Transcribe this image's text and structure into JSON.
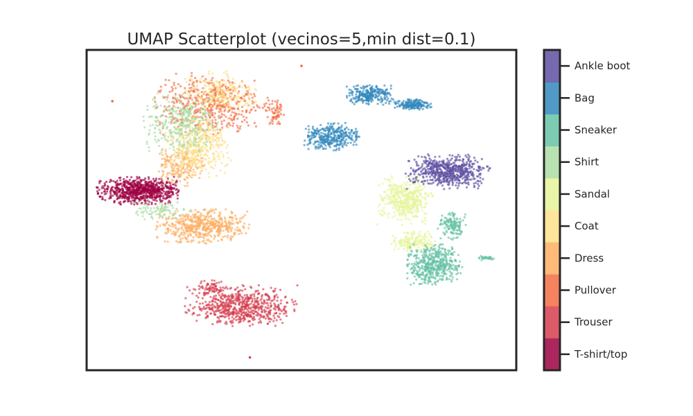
{
  "chart_data": {
    "type": "scatter",
    "title": "UMAP Scatterplot (vecinos=5,min dist=0.1)",
    "xlabel": "",
    "ylabel": "",
    "x_ticks_shown": false,
    "y_ticks_shown": false,
    "grid": false,
    "colorbar": {
      "type": "discrete",
      "cmap": "Spectral",
      "placement": "right",
      "labels": [
        "T-shirt/top",
        "Trouser",
        "Pullover",
        "Dress",
        "Coat",
        "Sandal",
        "Shirt",
        "Sneaker",
        "Bag",
        "Ankle boot"
      ],
      "colors": [
        "#9e0142",
        "#d53e4f",
        "#f46d43",
        "#fdae61",
        "#fee08b",
        "#e6f598",
        "#abdda4",
        "#66c2a5",
        "#3288bd",
        "#5e4fa2"
      ]
    },
    "series": [
      {
        "name": "T-shirt/top",
        "color": "#9e0142",
        "clusters": [
          {
            "cx": 0.12,
            "cy": 0.44,
            "rx": 0.09,
            "ry": 0.04,
            "n": 750
          }
        ]
      },
      {
        "name": "Trouser",
        "color": "#d53e4f",
        "clusters": [
          {
            "cx": 0.36,
            "cy": 0.8,
            "rx": 0.12,
            "ry": 0.06,
            "n": 650
          },
          {
            "cx": 0.29,
            "cy": 0.74,
            "rx": 0.03,
            "ry": 0.02,
            "n": 60
          }
        ]
      },
      {
        "name": "Pullover",
        "color": "#f46d43",
        "clusters": [
          {
            "cx": 0.29,
            "cy": 0.17,
            "rx": 0.12,
            "ry": 0.09,
            "n": 520
          },
          {
            "cx": 0.44,
            "cy": 0.2,
            "rx": 0.02,
            "ry": 0.04,
            "n": 60
          }
        ]
      },
      {
        "name": "Dress",
        "color": "#fdae61",
        "clusters": [
          {
            "cx": 0.27,
            "cy": 0.55,
            "rx": 0.1,
            "ry": 0.05,
            "n": 520
          },
          {
            "cx": 0.22,
            "cy": 0.36,
            "rx": 0.05,
            "ry": 0.06,
            "n": 180
          }
        ]
      },
      {
        "name": "Coat",
        "color": "#fee08b",
        "clusters": [
          {
            "cx": 0.26,
            "cy": 0.3,
            "rx": 0.07,
            "ry": 0.09,
            "n": 430
          },
          {
            "cx": 0.31,
            "cy": 0.13,
            "rx": 0.08,
            "ry": 0.06,
            "n": 220
          }
        ]
      },
      {
        "name": "Sandal",
        "color": "#e6f598",
        "clusters": [
          {
            "cx": 0.74,
            "cy": 0.47,
            "rx": 0.06,
            "ry": 0.07,
            "n": 420
          },
          {
            "cx": 0.76,
            "cy": 0.6,
            "rx": 0.05,
            "ry": 0.03,
            "n": 160
          }
        ]
      },
      {
        "name": "Shirt",
        "color": "#abdda4",
        "clusters": [
          {
            "cx": 0.22,
            "cy": 0.23,
            "rx": 0.08,
            "ry": 0.09,
            "n": 340
          },
          {
            "cx": 0.17,
            "cy": 0.5,
            "rx": 0.07,
            "ry": 0.03,
            "n": 90
          }
        ]
      },
      {
        "name": "Sneaker",
        "color": "#66c2a5",
        "clusters": [
          {
            "cx": 0.81,
            "cy": 0.67,
            "rx": 0.06,
            "ry": 0.06,
            "n": 480
          },
          {
            "cx": 0.85,
            "cy": 0.55,
            "rx": 0.03,
            "ry": 0.04,
            "n": 140
          },
          {
            "cx": 0.93,
            "cy": 0.65,
            "rx": 0.02,
            "ry": 0.006,
            "n": 30
          }
        ]
      },
      {
        "name": "Bag",
        "color": "#3288bd",
        "clusters": [
          {
            "cx": 0.57,
            "cy": 0.27,
            "rx": 0.06,
            "ry": 0.04,
            "n": 330
          },
          {
            "cx": 0.66,
            "cy": 0.14,
            "rx": 0.05,
            "ry": 0.03,
            "n": 260
          },
          {
            "cx": 0.76,
            "cy": 0.17,
            "rx": 0.04,
            "ry": 0.015,
            "n": 180
          }
        ]
      },
      {
        "name": "Ankle boot",
        "color": "#5e4fa2",
        "clusters": [
          {
            "cx": 0.84,
            "cy": 0.38,
            "rx": 0.09,
            "ry": 0.05,
            "n": 580
          }
        ]
      }
    ],
    "outliers": [
      {
        "x": 0.06,
        "y": 0.16,
        "class": "Pullover"
      },
      {
        "x": 0.5,
        "y": 0.05,
        "class": "Pullover"
      },
      {
        "x": 0.38,
        "y": 0.96,
        "class": "Trouser"
      }
    ]
  }
}
